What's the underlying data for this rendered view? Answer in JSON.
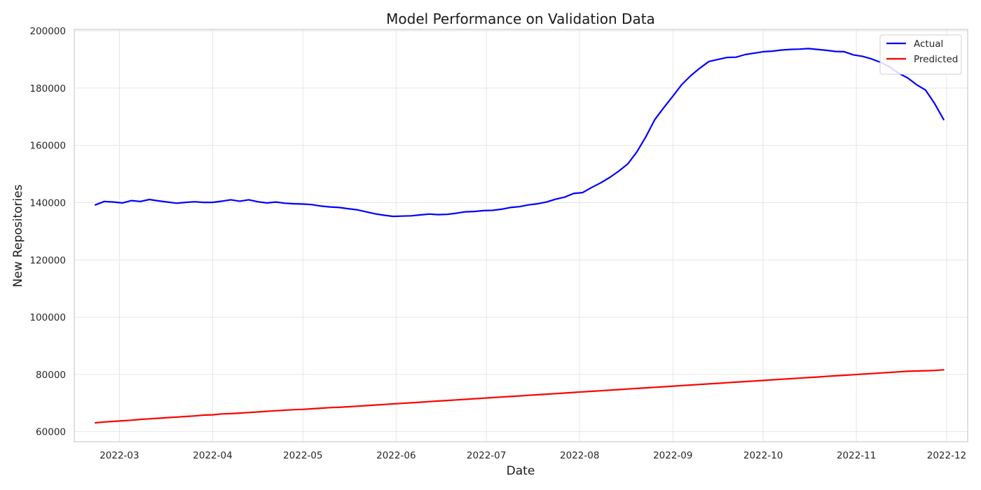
{
  "chart_data": {
    "type": "line",
    "title": "Model Performance on Validation Data",
    "xlabel": "Date",
    "ylabel": "New Repositories",
    "x_ticks": [
      "2022-03",
      "2022-04",
      "2022-05",
      "2022-06",
      "2022-07",
      "2022-08",
      "2022-09",
      "2022-10",
      "2022-11",
      "2022-12"
    ],
    "y_ticks": [
      "60000",
      "80000",
      "100000",
      "120000",
      "140000",
      "160000",
      "180000",
      "200000"
    ],
    "xlim": [
      "2022-02-14",
      "2022-12-08"
    ],
    "ylim": [
      56500,
      200500
    ],
    "grid": true,
    "legend_position": "top-right",
    "series": [
      {
        "name": "Actual",
        "color": "#0000ff",
        "points": [
          [
            "2022-02-21",
            139200
          ],
          [
            "2022-02-24",
            140400
          ],
          [
            "2022-02-27",
            140200
          ],
          [
            "2022-03-02",
            139900
          ],
          [
            "2022-03-05",
            140700
          ],
          [
            "2022-03-08",
            140400
          ],
          [
            "2022-03-11",
            141100
          ],
          [
            "2022-03-14",
            140600
          ],
          [
            "2022-03-17",
            140200
          ],
          [
            "2022-03-20",
            139800
          ],
          [
            "2022-03-23",
            140100
          ],
          [
            "2022-03-26",
            140300
          ],
          [
            "2022-03-29",
            140100
          ],
          [
            "2022-04-01",
            140100
          ],
          [
            "2022-04-04",
            140500
          ],
          [
            "2022-04-07",
            141000
          ],
          [
            "2022-04-10",
            140500
          ],
          [
            "2022-04-13",
            141000
          ],
          [
            "2022-04-16",
            140300
          ],
          [
            "2022-04-19",
            139900
          ],
          [
            "2022-04-22",
            140200
          ],
          [
            "2022-04-25",
            139800
          ],
          [
            "2022-04-28",
            139600
          ],
          [
            "2022-05-01",
            139500
          ],
          [
            "2022-05-04",
            139300
          ],
          [
            "2022-05-07",
            138800
          ],
          [
            "2022-05-10",
            138500
          ],
          [
            "2022-05-13",
            138300
          ],
          [
            "2022-05-16",
            137900
          ],
          [
            "2022-05-19",
            137500
          ],
          [
            "2022-05-22",
            136800
          ],
          [
            "2022-05-25",
            136100
          ],
          [
            "2022-05-28",
            135600
          ],
          [
            "2022-05-31",
            135200
          ],
          [
            "2022-06-03",
            135300
          ],
          [
            "2022-06-06",
            135400
          ],
          [
            "2022-06-09",
            135700
          ],
          [
            "2022-06-12",
            136000
          ],
          [
            "2022-06-15",
            135800
          ],
          [
            "2022-06-18",
            135900
          ],
          [
            "2022-06-21",
            136300
          ],
          [
            "2022-06-24",
            136800
          ],
          [
            "2022-06-27",
            136900
          ],
          [
            "2022-06-30",
            137200
          ],
          [
            "2022-07-03",
            137300
          ],
          [
            "2022-07-06",
            137700
          ],
          [
            "2022-07-09",
            138300
          ],
          [
            "2022-07-12",
            138600
          ],
          [
            "2022-07-15",
            139200
          ],
          [
            "2022-07-18",
            139600
          ],
          [
            "2022-07-21",
            140200
          ],
          [
            "2022-07-24",
            141200
          ],
          [
            "2022-07-27",
            141900
          ],
          [
            "2022-07-30",
            143200
          ],
          [
            "2022-08-02",
            143500
          ],
          [
            "2022-08-05",
            145300
          ],
          [
            "2022-08-08",
            146900
          ],
          [
            "2022-08-11",
            148800
          ],
          [
            "2022-08-14",
            151000
          ],
          [
            "2022-08-17",
            153500
          ],
          [
            "2022-08-20",
            157700
          ],
          [
            "2022-08-23",
            163000
          ],
          [
            "2022-08-26",
            169000
          ],
          [
            "2022-08-29",
            173200
          ],
          [
            "2022-09-01",
            177200
          ],
          [
            "2022-09-04",
            181300
          ],
          [
            "2022-09-07",
            184400
          ],
          [
            "2022-09-10",
            187000
          ],
          [
            "2022-09-13",
            189300
          ],
          [
            "2022-09-16",
            190000
          ],
          [
            "2022-09-19",
            190700
          ],
          [
            "2022-09-22",
            190800
          ],
          [
            "2022-09-25",
            191700
          ],
          [
            "2022-09-28",
            192200
          ],
          [
            "2022-10-01",
            192700
          ],
          [
            "2022-10-04",
            192900
          ],
          [
            "2022-10-07",
            193300
          ],
          [
            "2022-10-10",
            193500
          ],
          [
            "2022-10-13",
            193600
          ],
          [
            "2022-10-16",
            193800
          ],
          [
            "2022-10-19",
            193500
          ],
          [
            "2022-10-22",
            193200
          ],
          [
            "2022-10-25",
            192800
          ],
          [
            "2022-10-28",
            192700
          ],
          [
            "2022-10-31",
            191600
          ],
          [
            "2022-11-03",
            191100
          ],
          [
            "2022-11-06",
            190200
          ],
          [
            "2022-11-09",
            189000
          ],
          [
            "2022-11-12",
            187500
          ],
          [
            "2022-11-15",
            185200
          ],
          [
            "2022-11-18",
            183600
          ],
          [
            "2022-11-21",
            181200
          ],
          [
            "2022-11-24",
            179300
          ],
          [
            "2022-11-27",
            174600
          ],
          [
            "2022-11-30",
            169000
          ]
        ]
      },
      {
        "name": "Predicted",
        "color": "#ff0000",
        "points": [
          [
            "2022-02-21",
            63100
          ],
          [
            "2022-02-24",
            63400
          ],
          [
            "2022-02-27",
            63600
          ],
          [
            "2022-03-02",
            63800
          ],
          [
            "2022-03-05",
            64000
          ],
          [
            "2022-03-08",
            64300
          ],
          [
            "2022-03-11",
            64500
          ],
          [
            "2022-03-14",
            64700
          ],
          [
            "2022-03-17",
            64900
          ],
          [
            "2022-03-20",
            65100
          ],
          [
            "2022-03-23",
            65300
          ],
          [
            "2022-03-26",
            65500
          ],
          [
            "2022-03-29",
            65800
          ],
          [
            "2022-04-01",
            65900
          ],
          [
            "2022-04-04",
            66200
          ],
          [
            "2022-04-07",
            66300
          ],
          [
            "2022-04-10",
            66500
          ],
          [
            "2022-04-13",
            66700
          ],
          [
            "2022-04-16",
            66900
          ],
          [
            "2022-04-19",
            67100
          ],
          [
            "2022-04-22",
            67300
          ],
          [
            "2022-04-25",
            67500
          ],
          [
            "2022-04-28",
            67700
          ],
          [
            "2022-05-01",
            67800
          ],
          [
            "2022-05-04",
            68000
          ],
          [
            "2022-05-07",
            68200
          ],
          [
            "2022-05-10",
            68400
          ],
          [
            "2022-05-13",
            68500
          ],
          [
            "2022-05-16",
            68700
          ],
          [
            "2022-05-19",
            68900
          ],
          [
            "2022-05-22",
            69100
          ],
          [
            "2022-05-25",
            69300
          ],
          [
            "2022-05-28",
            69500
          ],
          [
            "2022-05-31",
            69700
          ],
          [
            "2022-06-03",
            69900
          ],
          [
            "2022-06-06",
            70100
          ],
          [
            "2022-06-09",
            70300
          ],
          [
            "2022-06-12",
            70500
          ],
          [
            "2022-06-15",
            70700
          ],
          [
            "2022-06-18",
            70900
          ],
          [
            "2022-06-21",
            71100
          ],
          [
            "2022-06-24",
            71300
          ],
          [
            "2022-06-27",
            71500
          ],
          [
            "2022-06-30",
            71700
          ],
          [
            "2022-07-03",
            71900
          ],
          [
            "2022-07-06",
            72100
          ],
          [
            "2022-07-09",
            72300
          ],
          [
            "2022-07-12",
            72500
          ],
          [
            "2022-07-15",
            72700
          ],
          [
            "2022-07-18",
            72900
          ],
          [
            "2022-07-21",
            73100
          ],
          [
            "2022-07-24",
            73300
          ],
          [
            "2022-07-27",
            73500
          ],
          [
            "2022-07-30",
            73700
          ],
          [
            "2022-08-02",
            73900
          ],
          [
            "2022-08-05",
            74100
          ],
          [
            "2022-08-08",
            74300
          ],
          [
            "2022-08-11",
            74500
          ],
          [
            "2022-08-14",
            74700
          ],
          [
            "2022-08-17",
            74900
          ],
          [
            "2022-08-20",
            75100
          ],
          [
            "2022-08-23",
            75300
          ],
          [
            "2022-08-26",
            75500
          ],
          [
            "2022-08-29",
            75700
          ],
          [
            "2022-09-01",
            75900
          ],
          [
            "2022-09-04",
            76100
          ],
          [
            "2022-09-07",
            76300
          ],
          [
            "2022-09-10",
            76500
          ],
          [
            "2022-09-13",
            76700
          ],
          [
            "2022-09-16",
            76900
          ],
          [
            "2022-09-19",
            77100
          ],
          [
            "2022-09-22",
            77300
          ],
          [
            "2022-09-25",
            77500
          ],
          [
            "2022-09-28",
            77700
          ],
          [
            "2022-10-01",
            77900
          ],
          [
            "2022-10-04",
            78100
          ],
          [
            "2022-10-07",
            78300
          ],
          [
            "2022-10-10",
            78500
          ],
          [
            "2022-10-13",
            78700
          ],
          [
            "2022-10-16",
            78900
          ],
          [
            "2022-10-19",
            79100
          ],
          [
            "2022-10-22",
            79300
          ],
          [
            "2022-10-25",
            79500
          ],
          [
            "2022-10-28",
            79700
          ],
          [
            "2022-10-31",
            79900
          ],
          [
            "2022-11-03",
            80100
          ],
          [
            "2022-11-06",
            80300
          ],
          [
            "2022-11-09",
            80500
          ],
          [
            "2022-11-12",
            80700
          ],
          [
            "2022-11-15",
            80900
          ],
          [
            "2022-11-18",
            81100
          ],
          [
            "2022-11-21",
            81200
          ],
          [
            "2022-11-24",
            81300
          ],
          [
            "2022-11-27",
            81400
          ],
          [
            "2022-11-30",
            81600
          ]
        ]
      }
    ]
  }
}
